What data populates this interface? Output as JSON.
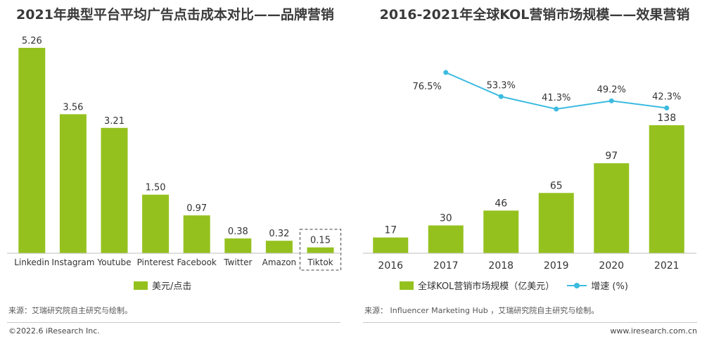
{
  "colors": {
    "bar": "#95c11f",
    "line": "#3bbbe0",
    "axis": "#bfbfbf",
    "text": "#333333",
    "highlight_border": "#666666"
  },
  "chart_data": [
    {
      "type": "bar",
      "title": "2021年典型平台平均广告点击成本对比——品牌营销",
      "categories": [
        "Linkedin",
        "Instagram",
        "Youtube",
        "Pinterest",
        "Facebook",
        "Twitter",
        "Amazon",
        "Tiktok"
      ],
      "values": [
        5.26,
        3.56,
        3.21,
        1.5,
        0.97,
        0.38,
        0.32,
        0.15
      ],
      "value_labels": [
        "5.26",
        "3.56",
        "3.21",
        "1.50",
        "0.97",
        "0.38",
        "0.32",
        "0.15"
      ],
      "legend": "美元/点击",
      "highlighted_category": "Tiktok",
      "ylim": [
        0,
        5.26
      ],
      "xlabel": "",
      "ylabel": ""
    },
    {
      "type": "bar",
      "title": "2016-2021年全球KOL营销市场规模——效果营销",
      "categories": [
        "2016",
        "2017",
        "2018",
        "2019",
        "2020",
        "2021"
      ],
      "series": [
        {
          "name": "全球KOL营销市场规模（亿美元）",
          "type": "bar",
          "values": [
            17,
            30,
            46,
            65,
            97,
            138
          ],
          "value_labels": [
            "17",
            "30",
            "46",
            "65",
            "97",
            "138"
          ]
        },
        {
          "name": "增速 (%)",
          "type": "line",
          "values": [
            null,
            76.5,
            53.3,
            41.3,
            49.2,
            42.3
          ],
          "value_labels": [
            "",
            "76.5%",
            "53.3%",
            "41.3%",
            "49.2%",
            "42.3%"
          ]
        }
      ],
      "ylim": [
        0,
        138
      ],
      "xlabel": "",
      "ylabel": ""
    }
  ],
  "sources": {
    "left": "来源：艾瑞研究院自主研究与绘制。",
    "right": "来源： Influencer Marketing Hub ，艾瑞研究院自主研究与绘制。"
  },
  "footer": {
    "copyright": "©2022.6 iResearch Inc.",
    "website": "www.iresearch.com.cn"
  }
}
